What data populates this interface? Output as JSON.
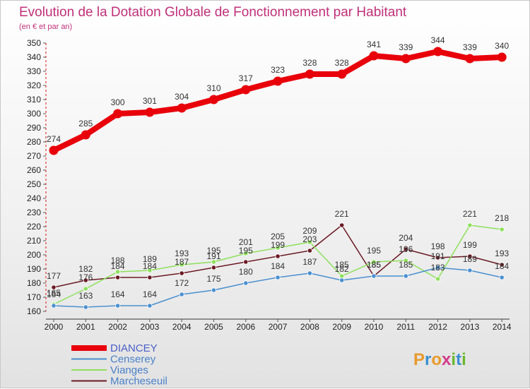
{
  "title": "Evolution de la Dotation Globale de Fonctionnement par Habitant",
  "subtitle": "(en € et par an)",
  "logo": {
    "text": "Proxiti",
    "letters": [
      "P",
      "r",
      "o",
      "x",
      "i",
      "t",
      "i"
    ],
    "colors": [
      "#e89a2c",
      "#3a8fd0",
      "#e89a2c",
      "#d23c8a",
      "#6ab82e",
      "#3a8fd0",
      "#6ab82e"
    ]
  },
  "chart_data": {
    "type": "line",
    "x": [
      "2000",
      "2001",
      "2002",
      "2003",
      "2004",
      "2005",
      "2006",
      "2007",
      "2008",
      "2009",
      "2010",
      "2011",
      "2012",
      "2013",
      "2014"
    ],
    "ylim": [
      160,
      350
    ],
    "yticks": [
      160,
      170,
      180,
      190,
      200,
      210,
      220,
      230,
      240,
      250,
      260,
      270,
      280,
      290,
      300,
      310,
      320,
      330,
      340,
      350
    ],
    "grid": false,
    "legend_position": "bottom-left",
    "series": [
      {
        "name": "DIANCEY",
        "color": "#e8000a",
        "values": [
          274,
          285,
          300,
          301,
          304,
          310,
          317,
          323,
          328,
          328,
          341,
          339,
          344,
          339,
          340
        ]
      },
      {
        "name": "Censerey",
        "color": "#4a90d0",
        "values": [
          164,
          163,
          164,
          164,
          172,
          175,
          180,
          184,
          187,
          182,
          185,
          185,
          191,
          189,
          184
        ]
      },
      {
        "name": "Vianges",
        "color": "#8ee05c",
        "values": [
          165,
          176,
          188,
          189,
          193,
          195,
          201,
          205,
          209,
          185,
          195,
          196,
          183,
          221,
          218
        ]
      },
      {
        "name": "Marcheseuil",
        "color": "#6b1a24",
        "values": [
          177,
          182,
          184,
          184,
          187,
          191,
          195,
          199,
          203,
          221,
          185,
          204,
          198,
          199,
          193
        ]
      }
    ],
    "labels": {
      "DIANCEY": [
        "274",
        "285",
        "300",
        "301",
        "304",
        "310",
        "317",
        "323",
        "328",
        "328",
        "341",
        "339",
        "344",
        "339",
        "340"
      ],
      "Censerey": [
        "164",
        "163",
        "164",
        "164",
        "172",
        "175",
        "180",
        "184",
        "187",
        "182",
        "185",
        "185",
        "191",
        "189",
        "184"
      ],
      "Vianges": [
        "165",
        "176",
        "188",
        "189",
        "193",
        "195",
        "201",
        "205",
        "209",
        "185",
        "195",
        "196",
        "183",
        "221",
        "218"
      ],
      "Marcheseuil": [
        "177",
        "182",
        "184",
        "184",
        "187",
        "191",
        "195",
        "199",
        "203",
        "221",
        "185",
        "204",
        "198",
        "199",
        "193"
      ]
    }
  }
}
